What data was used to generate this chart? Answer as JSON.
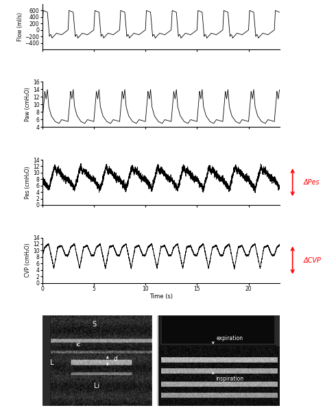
{
  "flow_ylim": [
    -600,
    800
  ],
  "flow_yticks": [
    -400,
    -200,
    0,
    200,
    400,
    600
  ],
  "flow_ylabel": "Flow (ml/s)",
  "paw_ylim": [
    4,
    16
  ],
  "paw_yticks": [
    4,
    6,
    8,
    10,
    12,
    14,
    16
  ],
  "paw_ylabel": "Paw (cmH₂O)",
  "pes_ylim": [
    0,
    14
  ],
  "pes_yticks": [
    0,
    2,
    4,
    6,
    8,
    10,
    12,
    14
  ],
  "pes_ylabel": "Pes (cmH₂O)",
  "cvp_ylim": [
    0,
    14
  ],
  "cvp_yticks": [
    0,
    2,
    4,
    6,
    8,
    10,
    12,
    14
  ],
  "cvp_ylabel": "CVP (cmH₂O)",
  "xlim": [
    0,
    23
  ],
  "xticks": [
    0,
    5,
    10,
    15,
    20
  ],
  "xlabel": "Time (s)",
  "arrow_color": "#ff0000",
  "line_color": "#000000",
  "background_color": "#ffffff",
  "breath_period": 2.5,
  "total_time": 23.0,
  "delta_pes_label": "ΔPes",
  "delta_cvp_label": "ΔCVP",
  "us_bg": "#111111",
  "us_left_bg": "#202020",
  "us_right_bg": "#151515"
}
